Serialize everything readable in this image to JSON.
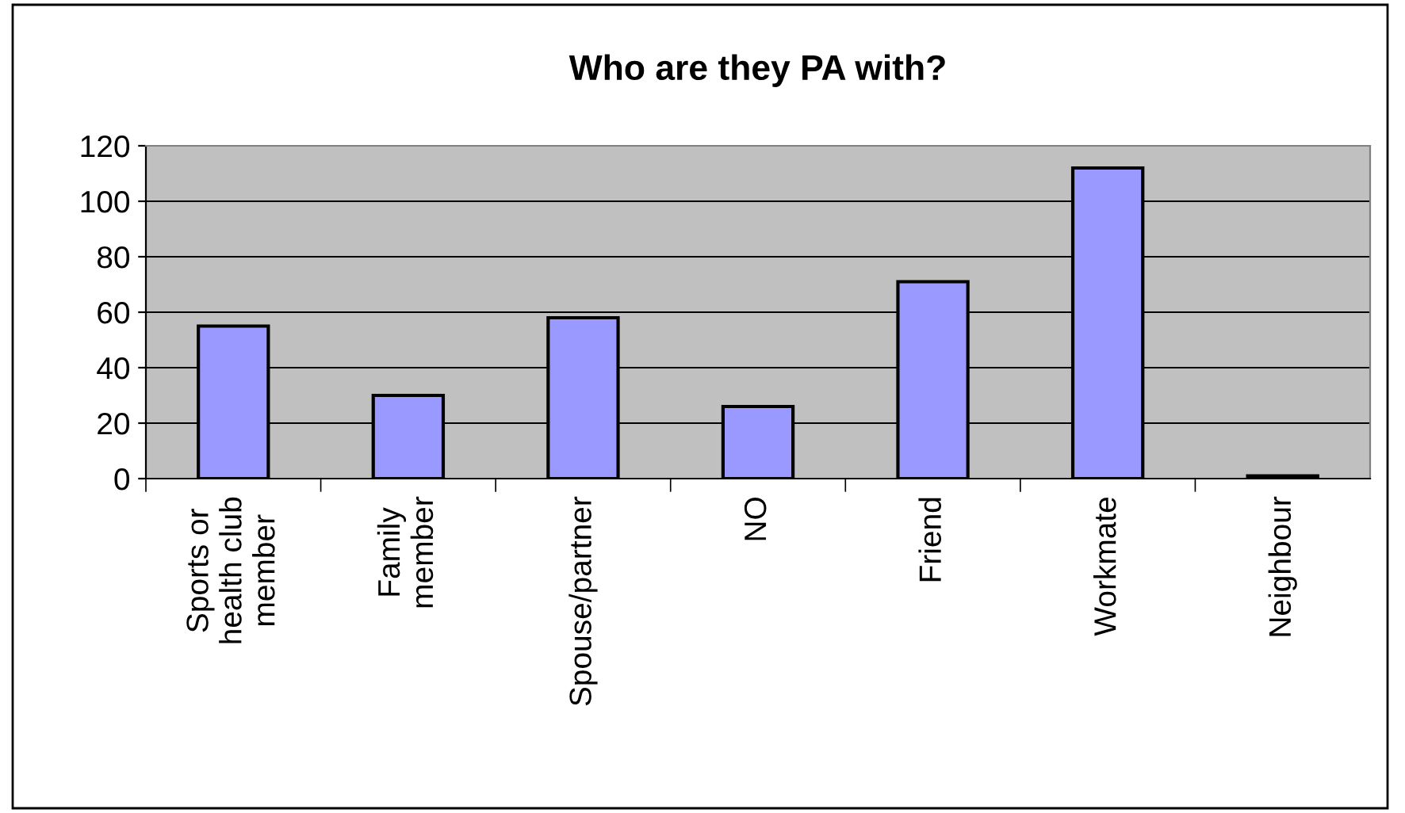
{
  "chart_data": {
    "type": "bar",
    "title": "Who are they PA with?",
    "categories": [
      "Sports or\nhealth club\nmember",
      "Family\nmember",
      "Spouse/partner",
      "NO",
      "Friend",
      "Workmate",
      "Neighbour"
    ],
    "values": [
      55,
      30,
      58,
      26,
      71,
      112,
      1
    ],
    "color": "#9999ff",
    "ylim": [
      0,
      120
    ],
    "yticks": [
      0,
      20,
      40,
      60,
      80,
      100,
      120
    ],
    "grid": "y"
  }
}
